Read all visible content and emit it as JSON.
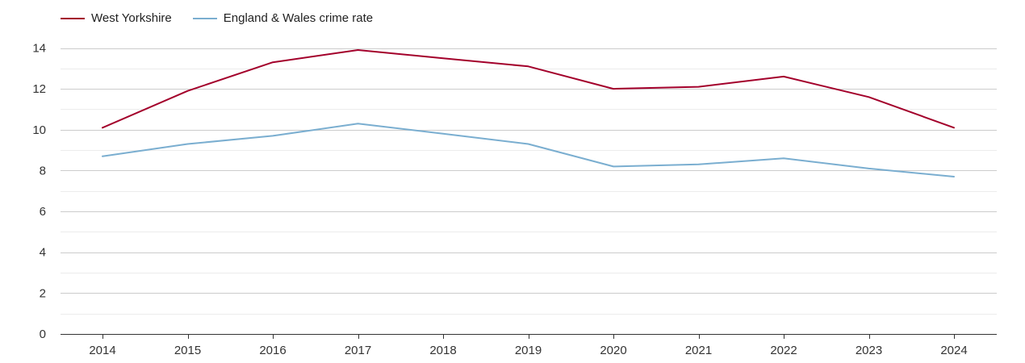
{
  "chart_data": {
    "type": "line",
    "title": "",
    "xlabel": "",
    "ylabel": "",
    "x": [
      "2014",
      "2015",
      "2016",
      "2017",
      "2018",
      "2019",
      "2020",
      "2021",
      "2022",
      "2023",
      "2024"
    ],
    "ylim": [
      0,
      14
    ],
    "yticks": [
      "0",
      "2",
      "4",
      "6",
      "8",
      "10",
      "12",
      "14"
    ],
    "grid": true,
    "legend": "top-left",
    "series": [
      {
        "name": "West Yorkshire",
        "color": "#a3002b",
        "values": [
          10.1,
          11.9,
          13.3,
          13.9,
          13.5,
          13.1,
          12.0,
          12.1,
          12.6,
          11.6,
          10.1
        ]
      },
      {
        "name": "England & Wales crime rate",
        "color": "#7aaed0",
        "values": [
          8.7,
          9.3,
          9.7,
          10.3,
          9.8,
          9.3,
          8.2,
          8.3,
          8.6,
          8.1,
          7.7
        ]
      }
    ]
  }
}
